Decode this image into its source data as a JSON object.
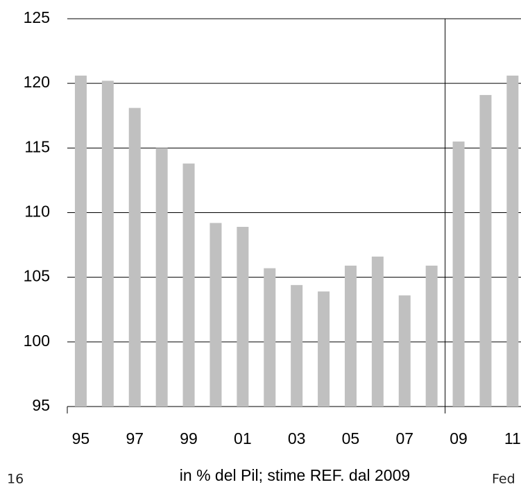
{
  "chart_data": {
    "type": "bar",
    "xlabel": "in % del Pil; stime REF. dal 2009",
    "categories": [
      "95",
      null,
      "97",
      null,
      "99",
      null,
      "01",
      null,
      "03",
      null,
      "05",
      null,
      "07",
      null,
      "09",
      null,
      "11"
    ],
    "values": [
      120.6,
      120.2,
      118.1,
      115.0,
      113.8,
      109.2,
      108.9,
      105.7,
      104.4,
      103.9,
      105.9,
      106.6,
      103.6,
      105.9,
      115.5,
      119.1,
      120.6
    ],
    "color": "#c0c0c0",
    "ylim": [
      95,
      125
    ],
    "yticks": [
      95,
      100,
      105,
      110,
      115,
      120,
      125
    ],
    "grid": true
  },
  "page_number": "16",
  "footer": "Fed"
}
